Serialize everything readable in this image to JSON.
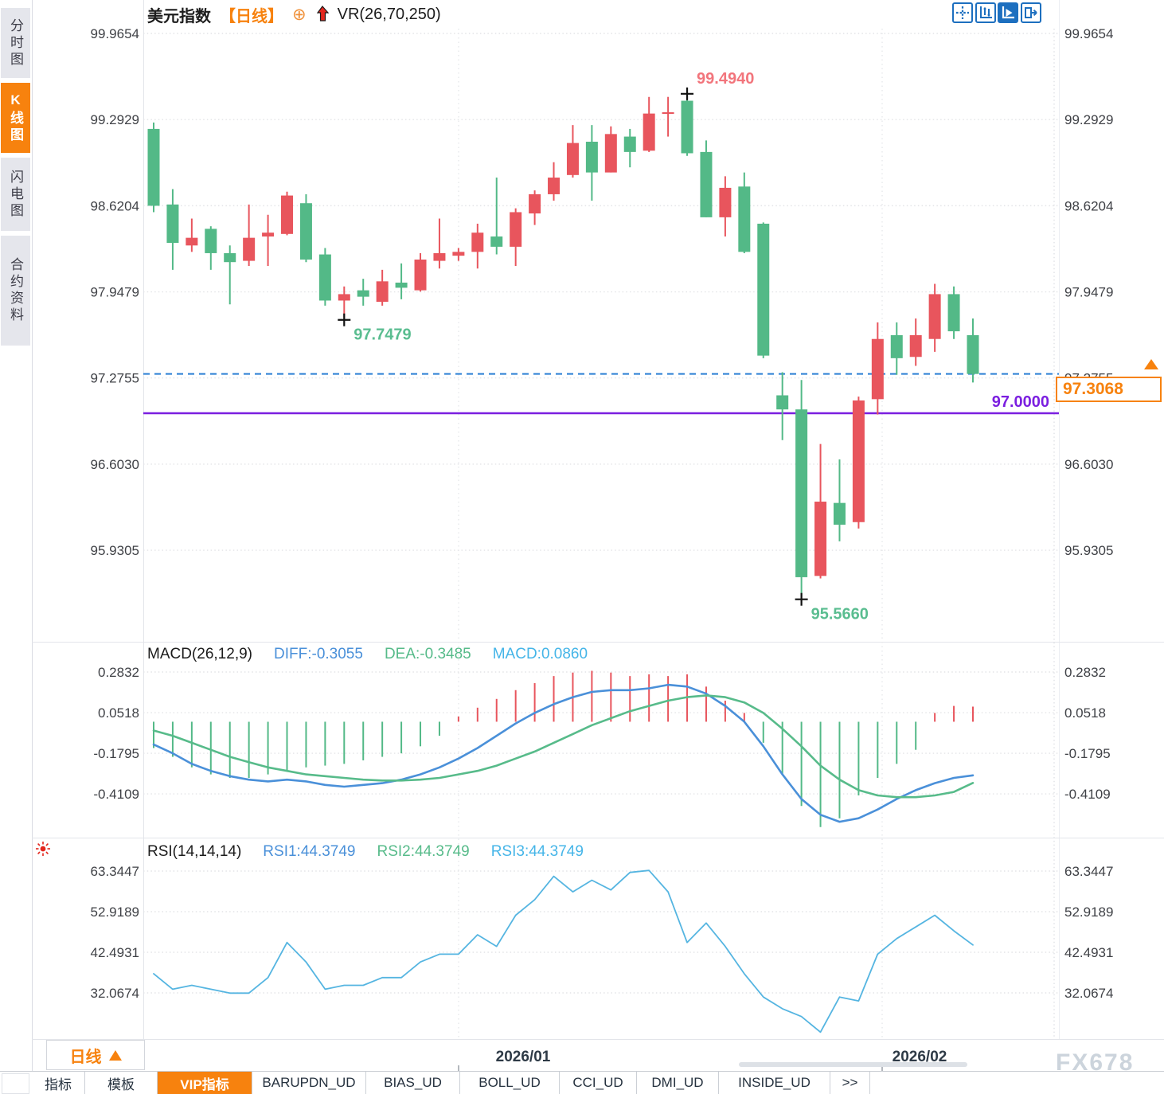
{
  "header": {
    "symbol": "美元指数",
    "period": "【日线】",
    "overlay_indicator": "VR(26,70,250)"
  },
  "sidebar": {
    "tabs": [
      {
        "label": "分时图",
        "active": false
      },
      {
        "label": "K线图",
        "active": true
      },
      {
        "label": "闪电图",
        "active": false
      },
      {
        "label": "合约资料",
        "active": false
      }
    ]
  },
  "toolbar": {
    "buttons": [
      "pan-crosshair",
      "axis-range",
      "auto-scale",
      "snap-latest"
    ],
    "active_index": 2
  },
  "colors": {
    "bull": "#e8555d",
    "bear": "#53b987",
    "diff_line": "#4a90d9",
    "dea_line": "#57bb8a",
    "macd_value": "#45b5e8",
    "rsi_line": "#55b5e1",
    "current_price_line": "#2a7fd4",
    "support_line": "#7b1fe0",
    "accent_orange": "#f7820e",
    "grid": "#e3e4e7",
    "axis_text": "#3f4146",
    "annotation_high": "#f2757c",
    "annotation_low": "#5abd90"
  },
  "price_scale_right": {
    "current_price": "97.3068"
  },
  "chart_data": [
    {
      "type": "candlestick",
      "title": "美元指数 日线",
      "y_ticks": [
        "99.9654",
        "99.2929",
        "98.6204",
        "97.9479",
        "97.2755",
        "96.6030",
        "95.9305"
      ],
      "ylim": [
        95.9305,
        99.9654
      ],
      "x_axis": {
        "labels": [
          "2026/01",
          "2026/02"
        ]
      },
      "ohlc": [
        [
          99.22,
          99.27,
          98.57,
          98.62
        ],
        [
          98.63,
          98.75,
          98.12,
          98.33
        ],
        [
          98.31,
          98.52,
          98.26,
          98.37
        ],
        [
          98.44,
          98.46,
          98.12,
          98.25
        ],
        [
          98.25,
          98.31,
          97.85,
          98.18
        ],
        [
          98.19,
          98.63,
          98.15,
          98.37
        ],
        [
          98.38,
          98.55,
          98.15,
          98.41
        ],
        [
          98.4,
          98.73,
          98.39,
          98.7
        ],
        [
          98.64,
          98.71,
          98.18,
          98.2
        ],
        [
          98.24,
          98.29,
          97.84,
          97.88
        ],
        [
          97.88,
          97.99,
          97.7479,
          97.93
        ],
        [
          97.96,
          98.05,
          97.84,
          97.91
        ],
        [
          97.87,
          98.12,
          97.84,
          98.03
        ],
        [
          98.02,
          98.17,
          97.89,
          97.98
        ],
        [
          97.96,
          98.25,
          97.95,
          98.2
        ],
        [
          98.19,
          98.52,
          98.13,
          98.25
        ],
        [
          98.23,
          98.29,
          98.19,
          98.26
        ],
        [
          98.26,
          98.48,
          98.13,
          98.41
        ],
        [
          98.38,
          98.84,
          98.24,
          98.3
        ],
        [
          98.3,
          98.6,
          98.15,
          98.57
        ],
        [
          98.56,
          98.74,
          98.47,
          98.71
        ],
        [
          98.71,
          98.96,
          98.66,
          98.84
        ],
        [
          98.86,
          99.25,
          98.84,
          99.11
        ],
        [
          99.12,
          99.25,
          98.66,
          98.88
        ],
        [
          98.88,
          99.24,
          98.88,
          99.18
        ],
        [
          99.16,
          99.22,
          98.92,
          99.04
        ],
        [
          99.05,
          99.47,
          99.04,
          99.34
        ],
        [
          99.35,
          99.47,
          99.16,
          99.35
        ],
        [
          99.44,
          99.494,
          99.01,
          99.03
        ],
        [
          99.04,
          99.13,
          98.53,
          98.53
        ],
        [
          98.53,
          98.85,
          98.38,
          98.76
        ],
        [
          98.77,
          98.88,
          98.25,
          98.26
        ],
        [
          98.48,
          98.49,
          97.43,
          97.45
        ],
        [
          97.14,
          97.32,
          96.79,
          97.03
        ],
        [
          97.03,
          97.26,
          95.566,
          95.72
        ],
        [
          95.73,
          96.76,
          95.71,
          96.31
        ],
        [
          96.3,
          96.64,
          96.0,
          96.13
        ],
        [
          96.15,
          97.13,
          96.1,
          97.1
        ],
        [
          97.11,
          97.71,
          96.99,
          97.58
        ],
        [
          97.61,
          97.71,
          97.3,
          97.43
        ],
        [
          97.44,
          97.74,
          97.37,
          97.61
        ],
        [
          97.58,
          98.01,
          97.48,
          97.93
        ],
        [
          97.93,
          97.99,
          97.58,
          97.64
        ],
        [
          97.61,
          97.74,
          97.24,
          97.3068
        ]
      ],
      "annotations": [
        {
          "text": "99.4940",
          "type": "high",
          "candle": 28
        },
        {
          "text": "97.7479",
          "type": "low",
          "candle": 10
        },
        {
          "text": "95.5660",
          "type": "low",
          "candle": 34
        }
      ],
      "hlines": [
        {
          "value": 97.3068,
          "label": "97.3068",
          "style": "dashed",
          "role": "current-price"
        },
        {
          "value": 97.0,
          "label": "97.0000",
          "style": "solid",
          "role": "support"
        }
      ]
    },
    {
      "type": "macd",
      "params_label": "MACD(26,12,9)",
      "readouts": [
        {
          "text": "DIFF:-0.3055",
          "color": "#4a90d9"
        },
        {
          "text": "DEA:-0.3485",
          "color": "#57bb8a"
        },
        {
          "text": "MACD:0.0860",
          "color": "#45b5e8"
        }
      ],
      "y_ticks": [
        "0.2832",
        "0.0518",
        "-0.1795",
        "-0.4109"
      ],
      "hist": [
        -0.15,
        -0.2,
        -0.26,
        -0.3,
        -0.32,
        -0.32,
        -0.3,
        -0.28,
        -0.26,
        -0.25,
        -0.24,
        -0.22,
        -0.2,
        -0.18,
        -0.14,
        -0.08,
        0.03,
        0.08,
        0.13,
        0.18,
        0.22,
        0.26,
        0.28,
        0.29,
        0.28,
        0.26,
        0.27,
        0.26,
        0.27,
        0.2,
        0.12,
        0.05,
        -0.12,
        -0.3,
        -0.48,
        -0.6,
        -0.55,
        -0.42,
        -0.32,
        -0.24,
        -0.16,
        0.05,
        0.09,
        0.086
      ],
      "diff": [
        -0.13,
        -0.18,
        -0.24,
        -0.28,
        -0.31,
        -0.33,
        -0.34,
        -0.33,
        -0.34,
        -0.36,
        -0.37,
        -0.36,
        -0.35,
        -0.33,
        -0.3,
        -0.26,
        -0.21,
        -0.15,
        -0.08,
        -0.01,
        0.05,
        0.1,
        0.14,
        0.17,
        0.18,
        0.18,
        0.19,
        0.21,
        0.2,
        0.16,
        0.09,
        0.0,
        -0.14,
        -0.3,
        -0.44,
        -0.53,
        -0.57,
        -0.55,
        -0.5,
        -0.44,
        -0.39,
        -0.35,
        -0.32,
        -0.3055
      ],
      "dea": [
        -0.05,
        -0.08,
        -0.12,
        -0.16,
        -0.2,
        -0.23,
        -0.26,
        -0.28,
        -0.3,
        -0.31,
        -0.32,
        -0.33,
        -0.335,
        -0.335,
        -0.33,
        -0.32,
        -0.3,
        -0.28,
        -0.25,
        -0.21,
        -0.17,
        -0.12,
        -0.07,
        -0.02,
        0.02,
        0.06,
        0.09,
        0.12,
        0.14,
        0.15,
        0.14,
        0.11,
        0.05,
        -0.04,
        -0.14,
        -0.25,
        -0.33,
        -0.39,
        -0.42,
        -0.43,
        -0.43,
        -0.42,
        -0.4,
        -0.3485
      ]
    },
    {
      "type": "rsi",
      "params_label": "RSI(14,14,14)",
      "readouts": [
        {
          "text": "RSI1:44.3749",
          "color": "#4a90d9"
        },
        {
          "text": "RSI2:44.3749",
          "color": "#57bb8a"
        },
        {
          "text": "RSI3:44.3749",
          "color": "#45b5e8"
        }
      ],
      "y_ticks": [
        "63.3447",
        "52.9189",
        "42.4931",
        "32.0674"
      ],
      "values": [
        37,
        33,
        34,
        33,
        32,
        32,
        36,
        45,
        40,
        33,
        34,
        34,
        36,
        36,
        40,
        42,
        42,
        47,
        44,
        52,
        56,
        62,
        58,
        61,
        58.5,
        63,
        63.5,
        58,
        45,
        50,
        44,
        37,
        31,
        28,
        26,
        22,
        31,
        30,
        42,
        46,
        49,
        52,
        48,
        44.3749
      ]
    }
  ],
  "bottom": {
    "period_button": "日线",
    "tabs": [
      {
        "label": "指标",
        "active": false
      },
      {
        "label": "模板",
        "active": false
      },
      {
        "label": "VIP指标",
        "active": true
      },
      {
        "label": "BARUPDN_UD",
        "active": false
      },
      {
        "label": "BIAS_UD",
        "active": false
      },
      {
        "label": "BOLL_UD",
        "active": false
      },
      {
        "label": "CCI_UD",
        "active": false
      },
      {
        "label": "DMI_UD",
        "active": false
      },
      {
        "label": "INSIDE_UD",
        "active": false
      },
      {
        "label": ">>",
        "active": false
      }
    ],
    "watermark": "FX678"
  }
}
